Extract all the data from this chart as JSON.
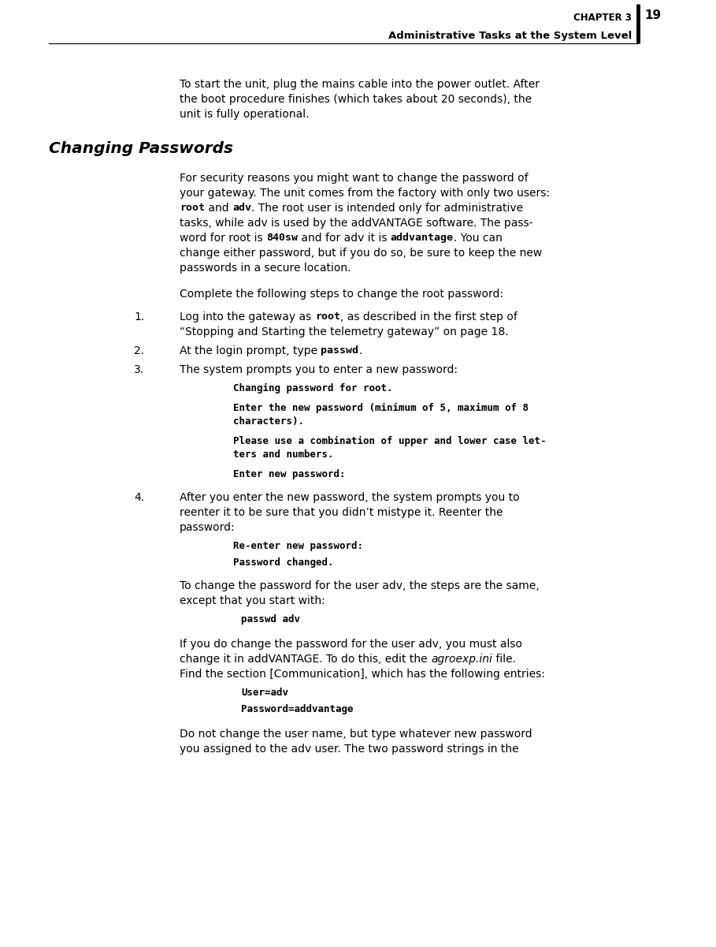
{
  "bg_color": "#ffffff",
  "header_chapter": "CHAPTER 3",
  "header_page": "19",
  "header_section": "Administrative Tasks at the System Level",
  "intro_lines": [
    "To start the unit, plug the mains cable into the power outlet. After",
    "the boot procedure finishes (which takes about 20 seconds), the",
    "unit is fully operational."
  ],
  "section_title": "Changing Passwords",
  "para1_segments": [
    [
      [
        "For security reasons you might want to change the password of",
        "normal"
      ]
    ],
    [
      [
        "your gateway. The unit comes from the factory with only two users:",
        "normal"
      ]
    ],
    [
      [
        "root",
        "bold_mono"
      ],
      [
        " and ",
        "normal"
      ],
      [
        "adv",
        "bold_mono"
      ],
      [
        ". The root user is intended only for administrative",
        "normal"
      ]
    ],
    [
      [
        "tasks, while adv is used by the addVANTAGE software. The pass-",
        "normal"
      ]
    ],
    [
      [
        "word for root is ",
        "normal"
      ],
      [
        "840sw",
        "bold_mono"
      ],
      [
        " and for adv it is ",
        "normal"
      ],
      [
        "addvantage",
        "bold_mono"
      ],
      [
        ". You can",
        "normal"
      ]
    ],
    [
      [
        "change either password, but if you do so, be sure to keep the new",
        "normal"
      ]
    ],
    [
      [
        "passwords in a secure location.",
        "normal"
      ]
    ]
  ],
  "complete_text": "Complete the following steps to change the root password:",
  "list1_line1_segs": [
    [
      "Log into the gateway as ",
      "normal"
    ],
    [
      "root",
      "bold_mono"
    ],
    [
      ", as described in the first step of",
      "normal"
    ]
  ],
  "list1_line2": "“Stopping and Starting the telemetry gateway” on page 18.",
  "list2_segs": [
    [
      "At the login prompt, type ",
      "normal"
    ],
    [
      "passwd",
      "bold_mono"
    ],
    [
      ".",
      "normal"
    ]
  ],
  "list3_line": "The system prompts you to enter a new password:",
  "code1": [
    "Changing password for root.",
    "Enter the new password (minimum of 5, maximum of 8",
    "characters).",
    "Please use a combination of upper and lower case let-",
    "ters and numbers.",
    "Enter new password:"
  ],
  "list4_lines": [
    "After you enter the new password, the system prompts you to",
    "reenter it to be sure that you didn’t mistype it. Reenter the",
    "password:"
  ],
  "code2": [
    "Re-enter new password:",
    "Password changed."
  ],
  "after_list": [
    "To change the password for the user adv, the steps are the same,",
    "except that you start with:"
  ],
  "code3": [
    "passwd adv"
  ],
  "after_code3": [
    "If you do change the password for the user adv, you must also",
    "change it in addVANTAGE. To do this, edit the agroexp.ini file.",
    "Find the section [Communication], which has the following entries:"
  ],
  "after_code3_line2_parts": [
    [
      "change it in addVANTAGE. To do this, edit the ",
      "normal"
    ],
    [
      "agroexp.ini",
      "italic"
    ],
    [
      " file.",
      "normal"
    ]
  ],
  "code4": [
    "User=adv",
    "Password=addvantage"
  ],
  "final_lines": [
    "Do not change the user name, but type whatever new password",
    "you assigned to the adv user. The two password strings in the"
  ]
}
